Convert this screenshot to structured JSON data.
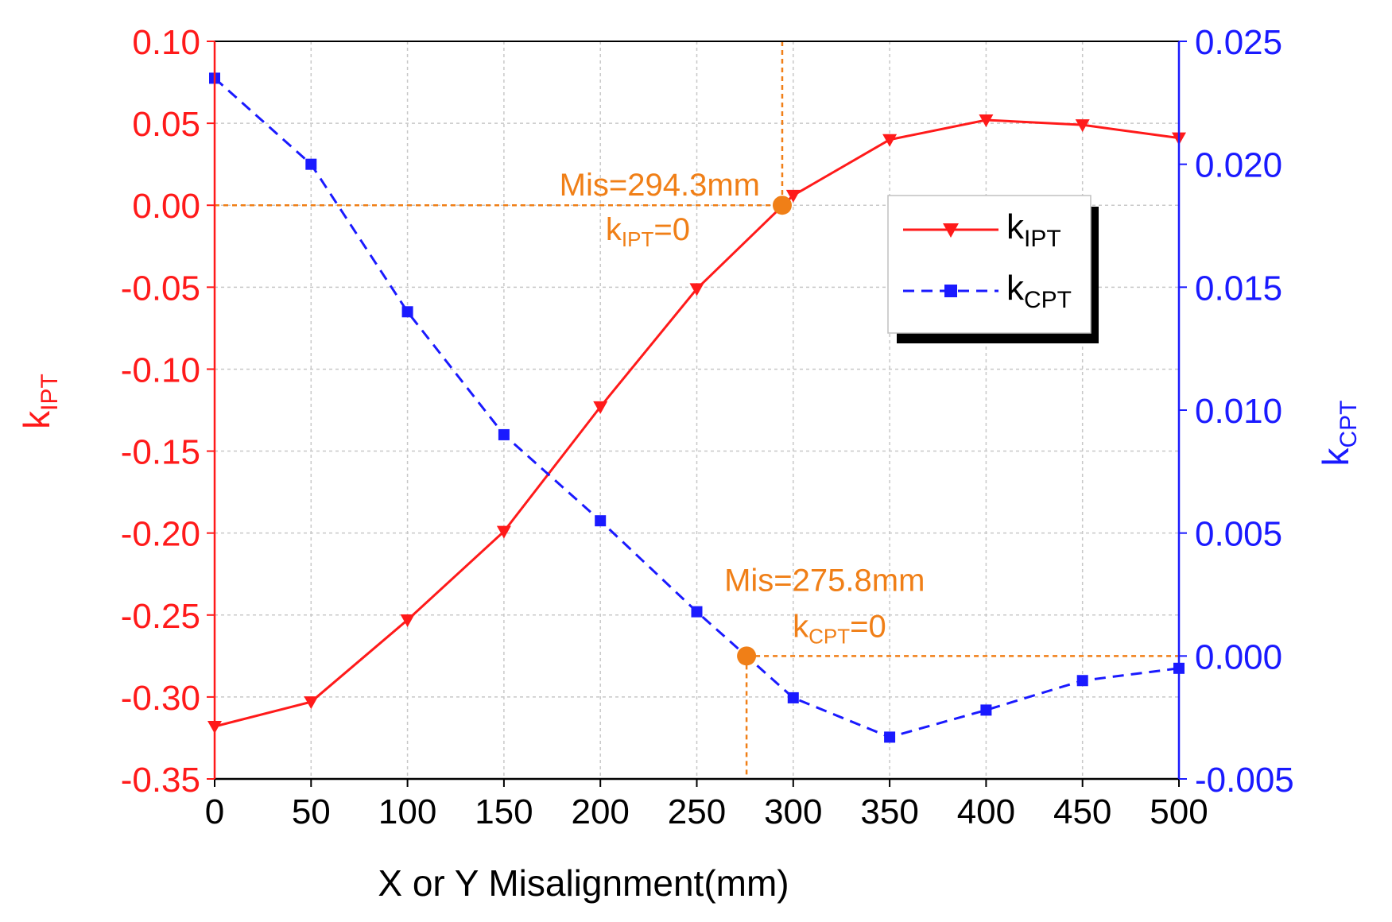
{
  "colors": {
    "kipt": "#ff1a1a",
    "kcpt": "#1a1aff",
    "annotation": "#f07f17",
    "grid": "#c8c8c8",
    "axis": "#000000"
  },
  "chart_data": {
    "type": "line",
    "title": "",
    "xlabel": "X or Y Misalignment(mm)",
    "x": [
      0,
      50,
      100,
      150,
      200,
      250,
      300,
      350,
      400,
      450,
      500
    ],
    "xlim": [
      0,
      500
    ],
    "xticks": [
      "0",
      "50",
      "100",
      "150",
      "200",
      "250",
      "300",
      "350",
      "400",
      "450",
      "500"
    ],
    "y_left": {
      "label_main": "k",
      "label_sub": "IPT",
      "lim": [
        -0.35,
        0.1
      ],
      "ticks": [
        0.1,
        0.05,
        0.0,
        -0.05,
        -0.1,
        -0.15,
        -0.2,
        -0.25,
        -0.3,
        -0.35
      ],
      "tick_labels": [
        "0.10",
        "0.05",
        "0.00",
        "-0.05",
        "-0.10",
        "-0.15",
        "-0.20",
        "-0.25",
        "-0.30",
        "-0.35"
      ]
    },
    "y_right": {
      "label_main": "k",
      "label_sub": "CPT",
      "lim": [
        -0.005,
        0.025
      ],
      "ticks": [
        0.025,
        0.02,
        0.015,
        0.01,
        0.005,
        0.0,
        -0.005
      ],
      "tick_labels": [
        "0.025",
        "0.020",
        "0.015",
        "0.010",
        "0.005",
        "0.000",
        "-0.005"
      ]
    },
    "grid": true,
    "legend_position": "top-right",
    "series": [
      {
        "name_main": "k",
        "name_sub": "IPT",
        "axis": "left",
        "style": "solid",
        "marker": "triangle-down",
        "values": [
          -0.318,
          -0.303,
          -0.253,
          -0.199,
          -0.123,
          -0.051,
          0.006,
          0.04,
          0.052,
          0.049,
          0.041
        ]
      },
      {
        "name_main": "k",
        "name_sub": "CPT",
        "axis": "right",
        "style": "dashed",
        "marker": "square",
        "values": [
          0.0235,
          0.02,
          0.014,
          0.009,
          0.0055,
          0.0018,
          -0.0017,
          -0.0033,
          -0.0022,
          -0.001,
          -0.0005
        ]
      }
    ],
    "annotations": [
      {
        "name": "kipt-zero",
        "axis": "left",
        "x": 294.3,
        "y": 0.0,
        "line1": "Mis=294.3mm",
        "line2_main": "k",
        "line2_sub": "IPT",
        "line2_tail": "=0"
      },
      {
        "name": "kcpt-zero",
        "axis": "right",
        "x": 275.8,
        "y": 0.0,
        "line1": "Mis=275.8mm",
        "line2_main": "k",
        "line2_sub": "CPT",
        "line2_tail": "=0"
      }
    ]
  }
}
